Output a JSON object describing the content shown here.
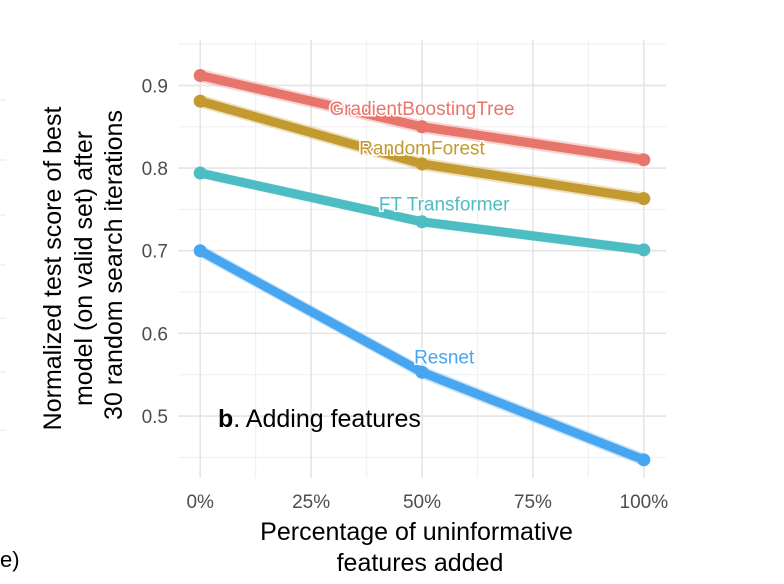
{
  "chart_data": {
    "type": "line",
    "panel_letter": "b",
    "panel_title": ". Adding features",
    "xlabel": [
      "Percentage of uninformative",
      "features added"
    ],
    "ylabel": [
      "Normalized test score of best",
      "model (on valid set) after",
      "30 random search iterations"
    ],
    "x": [
      0,
      0.5,
      1
    ],
    "xlim": [
      -0.05,
      1.05
    ],
    "xticks": [
      0,
      0.25,
      0.5,
      0.75,
      1
    ],
    "xtick_labels": [
      "0%",
      "25%",
      "50%",
      "75%",
      "100%"
    ],
    "ylim": [
      0.425,
      0.955
    ],
    "yticks": [
      0.5,
      0.6,
      0.7,
      0.8,
      0.9
    ],
    "ytick_labels": [
      "0.5",
      "0.6",
      "0.7",
      "0.8",
      "0.9"
    ],
    "grid": true,
    "series": [
      {
        "name": "GradientBoostingTree",
        "values": [
          0.912,
          0.85,
          0.81
        ],
        "ribbon": 0.008,
        "color": "#e8756b",
        "label_x": 0.5,
        "label_y": 0.873
      },
      {
        "name": "RandomForest",
        "values": [
          0.881,
          0.805,
          0.763
        ],
        "ribbon": 0.008,
        "color": "#c39a2f",
        "label_x": 0.5,
        "label_y": 0.825
      },
      {
        "name": "FT Transformer",
        "values": [
          0.794,
          0.735,
          0.701
        ],
        "ribbon": 0.006,
        "color": "#4dbdc4",
        "label_x": 0.55,
        "label_y": 0.757
      },
      {
        "name": "Resnet",
        "values": [
          0.7,
          0.553,
          0.447
        ],
        "ribbon": 0.008,
        "color": "#48a5f0",
        "label_x": 0.55,
        "label_y": 0.572
      }
    ]
  },
  "left_stub": {
    "bottom_text": "e)"
  }
}
